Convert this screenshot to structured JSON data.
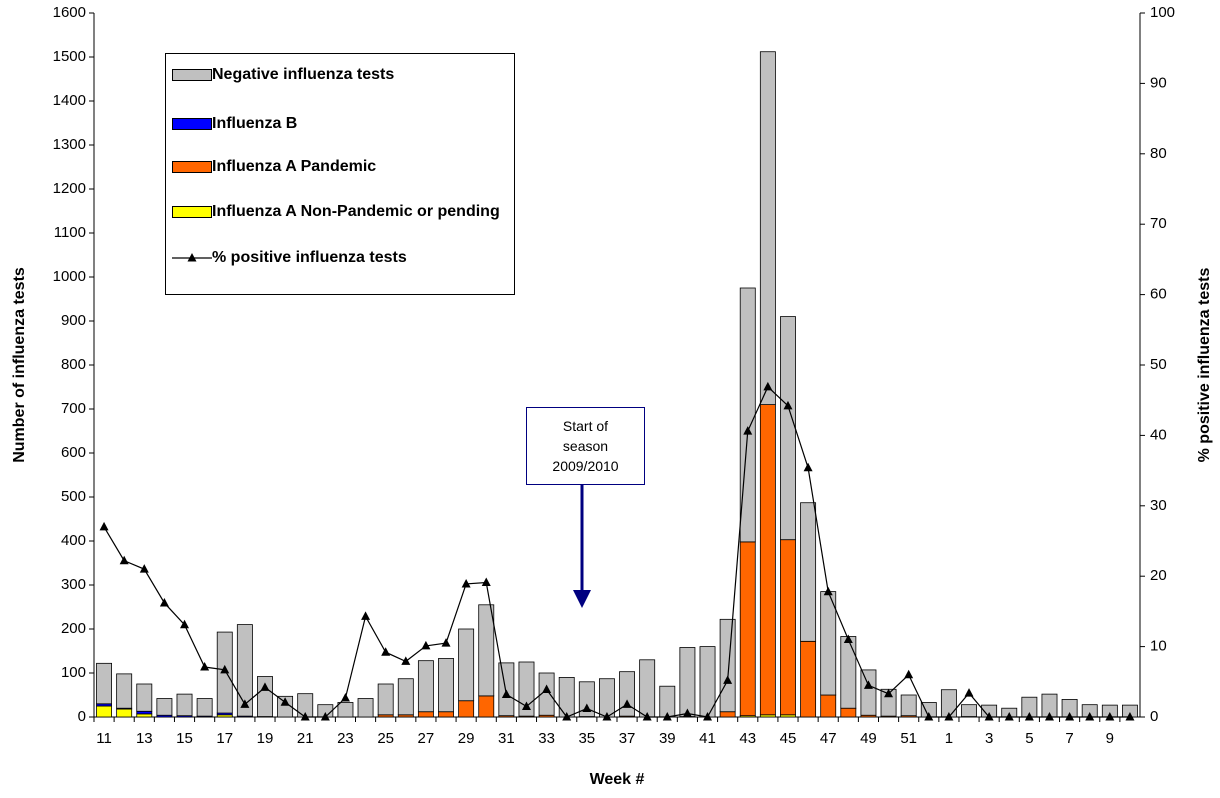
{
  "chart_data": {
    "type": "bar",
    "x_label": "Week #",
    "y_label": "Number of influenza tests",
    "y2_label": "% positive influenza tests",
    "annotation": "Start of season 2009/2010",
    "categories": [
      "11",
      null,
      "13",
      null,
      "15",
      null,
      "17",
      null,
      "19",
      null,
      "21",
      null,
      "23",
      null,
      "25",
      null,
      "27",
      null,
      "29",
      null,
      "31",
      null,
      "33",
      null,
      "35",
      null,
      "37",
      null,
      "39",
      null,
      "41",
      null,
      "43",
      null,
      "45",
      null,
      "47",
      null,
      "49",
      null,
      "51",
      null,
      "1",
      null,
      "3",
      null,
      "5",
      null,
      "7",
      null,
      "9",
      null
    ],
    "ylim": [
      0,
      1600
    ],
    "yticks": [
      0,
      100,
      200,
      300,
      400,
      500,
      600,
      700,
      800,
      900,
      1000,
      1100,
      1200,
      1300,
      1400,
      1500,
      1600
    ],
    "y2lim": [
      0,
      100
    ],
    "y2ticks": [
      0,
      10,
      20,
      30,
      40,
      50,
      60,
      70,
      80,
      90,
      100
    ],
    "series": [
      {
        "name": "Negative influenza tests",
        "color": "#c0c0c0",
        "type": "bar",
        "values": [
          92,
          78,
          62,
          38,
          49,
          40,
          184,
          208,
          91,
          47,
          53,
          28,
          33,
          42,
          70,
          82,
          116,
          121,
          163,
          207,
          120,
          123,
          96,
          90,
          79,
          87,
          101,
          130,
          70,
          157,
          160,
          210,
          577,
          802,
          507,
          315,
          235,
          163,
          103,
          61,
          47,
          33,
          62,
          27,
          27,
          20,
          45,
          52,
          40,
          28,
          27,
          27
        ]
      },
      {
        "name": "Influenza B",
        "color": "#0000ff",
        "type": "bar",
        "values": [
          5,
          2,
          6,
          4,
          3,
          2,
          4,
          2,
          1,
          0,
          0,
          0,
          0,
          0,
          0,
          0,
          0,
          0,
          0,
          0,
          0,
          0,
          0,
          0,
          0,
          0,
          0,
          0,
          0,
          0,
          0,
          0,
          0,
          0,
          0,
          0,
          0,
          0,
          0,
          0,
          0,
          0,
          0,
          0,
          0,
          0,
          0,
          0,
          0,
          0,
          0,
          0
        ]
      },
      {
        "name": "Influenza A Pandemic",
        "color": "#ff6600",
        "type": "bar",
        "values": [
          0,
          0,
          0,
          0,
          0,
          0,
          0,
          0,
          0,
          0,
          0,
          0,
          0,
          0,
          5,
          5,
          12,
          12,
          37,
          48,
          3,
          2,
          4,
          0,
          1,
          0,
          2,
          0,
          0,
          1,
          0,
          12,
          395,
          705,
          398,
          172,
          50,
          20,
          4,
          2,
          3,
          0,
          0,
          1,
          0,
          0,
          0,
          0,
          0,
          0,
          0,
          0
        ]
      },
      {
        "name": "Influenza A Non-Pandemic or pending",
        "color": "#ffff00",
        "type": "bar",
        "values": [
          25,
          18,
          7,
          0,
          0,
          0,
          5,
          0,
          0,
          0,
          0,
          0,
          0,
          0,
          0,
          0,
          0,
          0,
          0,
          0,
          0,
          0,
          0,
          0,
          0,
          0,
          0,
          0,
          0,
          0,
          0,
          0,
          3,
          5,
          5,
          0,
          0,
          0,
          0,
          0,
          0,
          0,
          0,
          0,
          0,
          0,
          0,
          0,
          0,
          0,
          0,
          0
        ]
      },
      {
        "name": "% positive influenza tests",
        "color": "#000000",
        "type": "line",
        "axis": "y2",
        "values": [
          27,
          22.2,
          21,
          16.2,
          13.1,
          7.1,
          6.7,
          1.8,
          4.2,
          2.1,
          0,
          0,
          2.7,
          14.3,
          9.2,
          7.9,
          10.1,
          10.5,
          18.9,
          19.1,
          3.2,
          1.5,
          3.9,
          0,
          1.2,
          0,
          1.8,
          0,
          0,
          0.5,
          0,
          5.2,
          40.6,
          46.9,
          44.2,
          35.4,
          17.8,
          11,
          4.5,
          3.3,
          6,
          0,
          0,
          3.4,
          0,
          0,
          0,
          0,
          0,
          0,
          0,
          0
        ]
      }
    ]
  }
}
